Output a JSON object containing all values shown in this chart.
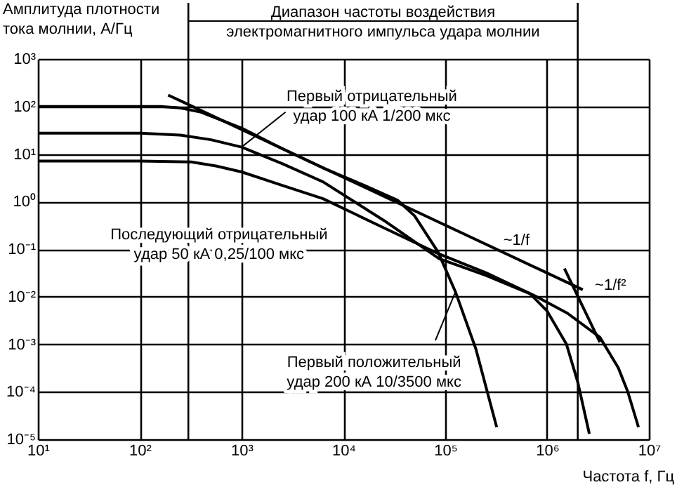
{
  "chart_data": {
    "type": "line",
    "xlabel": "Частота f, Гц",
    "ylabel": "Амплитуда плотности\nтока молнии, А/Гц",
    "log": "xy",
    "grid": true,
    "legend": false,
    "marker": "none",
    "line_style": "solid",
    "xlim": [
      10,
      10000000
    ],
    "ylim": [
      1e-05,
      1000
    ],
    "xticks": [
      {
        "value": 10,
        "label": "10¹"
      },
      {
        "value": 100,
        "label": "10²"
      },
      {
        "value": 1000,
        "label": "10³"
      },
      {
        "value": 10000,
        "label": "10⁴"
      },
      {
        "value": 100000,
        "label": "10⁵"
      },
      {
        "value": 1000000,
        "label": "10⁶"
      },
      {
        "value": 10000000,
        "label": "10⁷"
      }
    ],
    "yticks": [
      {
        "value": 1e-05,
        "label": "10⁻⁵"
      },
      {
        "value": 0.0001,
        "label": "10⁻⁴"
      },
      {
        "value": 0.001,
        "label": "10⁻³"
      },
      {
        "value": 0.01,
        "label": "10⁻²"
      },
      {
        "value": 0.1,
        "label": "10⁻¹"
      },
      {
        "value": 1,
        "label": "10⁰"
      },
      {
        "value": 10,
        "label": "10¹"
      },
      {
        "value": 100,
        "label": "10²"
      },
      {
        "value": 1000,
        "label": "10³"
      }
    ],
    "series": [
      {
        "name": "Первый положительный\nудар 200 кА 10/3500 мкс",
        "color": "#000000",
        "x": [
          10,
          160,
          250,
          400,
          1000,
          2500,
          6300,
          16000,
          34000,
          50000,
          85000,
          126000,
          200000,
          320000
        ],
        "values": [
          100,
          100,
          93,
          76,
          35,
          13,
          5.1,
          2.2,
          1.07,
          0.5,
          0.087,
          0.0126,
          0.00079,
          1.8e-05
        ]
      },
      {
        "name": "Первый отрицательный\nудар 100 кА 1/200 мкс",
        "color": "#000000",
        "x": [
          10,
          100,
          250,
          500,
          1000,
          2500,
          6300,
          25000,
          87000,
          250000,
          680000,
          1000000,
          1550000,
          2000000,
          2600000
        ],
        "values": [
          27.5,
          27.5,
          25,
          20,
          14,
          6.3,
          2.6,
          0.4,
          0.063,
          0.028,
          0.0115,
          0.005,
          0.001,
          0.00016,
          1.3e-05
        ]
      },
      {
        "name": "Последующий отрицательный\nудар 50 кА 0,25/100 мкс",
        "color": "#000000",
        "x": [
          10,
          100,
          320,
          560,
          1000,
          2500,
          6300,
          25000,
          87000,
          250000,
          740000,
          1580000,
          3300000,
          5000000,
          6200000,
          7900000
        ],
        "values": [
          7.1,
          7.1,
          6.8,
          5.6,
          4.2,
          2.2,
          1.15,
          0.28,
          0.079,
          0.032,
          0.0107,
          0.0045,
          0.0014,
          0.00032,
          0.0001,
          1.8e-05
        ]
      },
      {
        "name": "~1/f",
        "color": "#000000",
        "x": [
          190,
          2240000
        ],
        "values": [
          174,
          0.014
        ]
      },
      {
        "name": "~1/f²",
        "color": "#000000",
        "x": [
          1480000,
          3300000
        ],
        "values": [
          0.039,
          0.0011
        ]
      }
    ],
    "ref_lines": [
      {
        "axis": "x",
        "value": 300,
        "color": "#000000"
      },
      {
        "axis": "x",
        "value": 2000000,
        "color": "#000000"
      }
    ],
    "annotations": [
      "Диапазон частоты воздействия\nэлектромагнитного импульса удара молнии"
    ]
  }
}
